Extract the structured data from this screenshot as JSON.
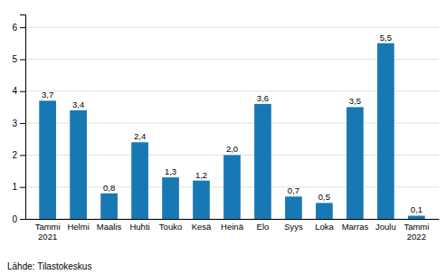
{
  "chart_data": {
    "type": "bar",
    "categories": [
      "Tammi\n2021",
      "Helmi",
      "Maalis",
      "Huhti",
      "Touko",
      "Kesä",
      "Heinä",
      "Elo",
      "Syys",
      "Loka",
      "Marras",
      "Joulu",
      "Tammi\n2022"
    ],
    "values": [
      3.7,
      3.4,
      0.8,
      2.4,
      1.3,
      1.2,
      2.0,
      3.6,
      0.7,
      0.5,
      3.5,
      5.5,
      0.1
    ],
    "value_labels": [
      "3,7",
      "3,4",
      "0,8",
      "2,4",
      "1,3",
      "1,2",
      "2,0",
      "3,6",
      "0,7",
      "0,5",
      "3,5",
      "5,5",
      "0,1"
    ],
    "data_labels": true,
    "color": "#1878b4",
    "ylim": [
      0,
      6.4
    ],
    "yticks": [
      0,
      1,
      2,
      3,
      4,
      5,
      6
    ],
    "grid": true,
    "annotations": [
      "Lähde: Tilastokeskus"
    ]
  }
}
